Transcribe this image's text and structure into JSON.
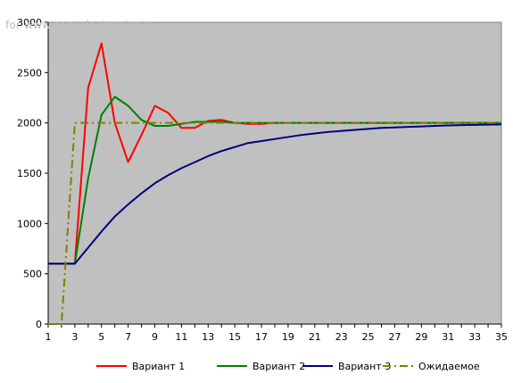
{
  "watermark": "for www.easyelectronics.ru",
  "chart_data": {
    "type": "line",
    "x": [
      1,
      2,
      3,
      4,
      5,
      6,
      7,
      8,
      9,
      10,
      11,
      12,
      13,
      14,
      15,
      16,
      17,
      18,
      19,
      20,
      21,
      22,
      23,
      24,
      25,
      26,
      27,
      28,
      29,
      30,
      31,
      32,
      33,
      34,
      35
    ],
    "xticks": [
      1,
      3,
      5,
      7,
      9,
      11,
      13,
      15,
      17,
      19,
      21,
      23,
      25,
      27,
      29,
      31,
      33,
      35
    ],
    "xlim": [
      1,
      35
    ],
    "ylim": [
      0,
      3000
    ],
    "yticks": [
      0,
      500,
      1000,
      1500,
      2000,
      2500,
      3000
    ],
    "grid": false,
    "plot_background": "#c0c0c0",
    "legend_position": "bottom",
    "series": [
      {
        "name": "Вариант 1",
        "color": "#ff0000",
        "style": "solid",
        "x": [
          1,
          2,
          3,
          4,
          5,
          6,
          7,
          8,
          9,
          10,
          11,
          12,
          13,
          14,
          15,
          16,
          17,
          18,
          19,
          20,
          21,
          22,
          23,
          24,
          25,
          26,
          27,
          28,
          29,
          30,
          31,
          32,
          33,
          34,
          35
        ],
        "values": [
          600,
          600,
          600,
          2350,
          2790,
          2000,
          1610,
          1880,
          2170,
          2100,
          1950,
          1950,
          2020,
          2030,
          2000,
          1990,
          1990,
          2000,
          2000,
          2000,
          2000,
          2000,
          2000,
          2000,
          2000,
          2000,
          2000,
          2000,
          2000,
          2000,
          2000,
          2000,
          2000,
          2000,
          2000
        ]
      },
      {
        "name": "Вариант 2",
        "color": "#008000",
        "style": "solid",
        "x": [
          1,
          2,
          3,
          4,
          5,
          6,
          7,
          8,
          9,
          10,
          11,
          12,
          13,
          14,
          15,
          16,
          17,
          18,
          19,
          20,
          21,
          22,
          23,
          24,
          25,
          26,
          27,
          28,
          29,
          30,
          31,
          32,
          33,
          34,
          35
        ],
        "values": [
          600,
          600,
          600,
          1450,
          2080,
          2260,
          2170,
          2030,
          1970,
          1970,
          1990,
          2010,
          2010,
          2010,
          2000,
          2000,
          2000,
          2000,
          2000,
          2000,
          2000,
          2000,
          2000,
          2000,
          2000,
          2000,
          2000,
          2000,
          2000,
          2000,
          2000,
          2000,
          2000,
          2000,
          2000
        ]
      },
      {
        "name": "Вариант 3",
        "color": "#000080",
        "style": "solid",
        "x": [
          1,
          2,
          3,
          4,
          5,
          6,
          7,
          8,
          9,
          10,
          11,
          12,
          13,
          14,
          15,
          16,
          17,
          18,
          19,
          20,
          21,
          22,
          23,
          24,
          25,
          26,
          27,
          28,
          29,
          30,
          31,
          32,
          33,
          34,
          35
        ],
        "values": [
          600,
          600,
          600,
          760,
          920,
          1070,
          1190,
          1300,
          1400,
          1480,
          1550,
          1610,
          1670,
          1720,
          1760,
          1800,
          1820,
          1840,
          1860,
          1880,
          1895,
          1910,
          1920,
          1930,
          1940,
          1950,
          1955,
          1960,
          1965,
          1970,
          1975,
          1978,
          1980,
          1983,
          1985
        ]
      },
      {
        "name": "Ожидаемое",
        "color": "#808000",
        "style": "dashdot",
        "x": [
          1,
          2,
          3,
          4,
          5,
          6,
          7,
          8,
          9,
          10,
          11,
          12,
          13,
          14,
          15,
          16,
          17,
          18,
          19,
          20,
          21,
          22,
          23,
          24,
          25,
          26,
          27,
          28,
          29,
          30,
          31,
          32,
          33,
          34,
          35
        ],
        "values": [
          0,
          0,
          2000,
          2000,
          2000,
          2000,
          2000,
          2000,
          2000,
          2000,
          2000,
          2000,
          2000,
          2000,
          2000,
          2000,
          2000,
          2000,
          2000,
          2000,
          2000,
          2000,
          2000,
          2000,
          2000,
          2000,
          2000,
          2000,
          2000,
          2000,
          2000,
          2000,
          2000,
          2000,
          2000
        ]
      }
    ]
  }
}
